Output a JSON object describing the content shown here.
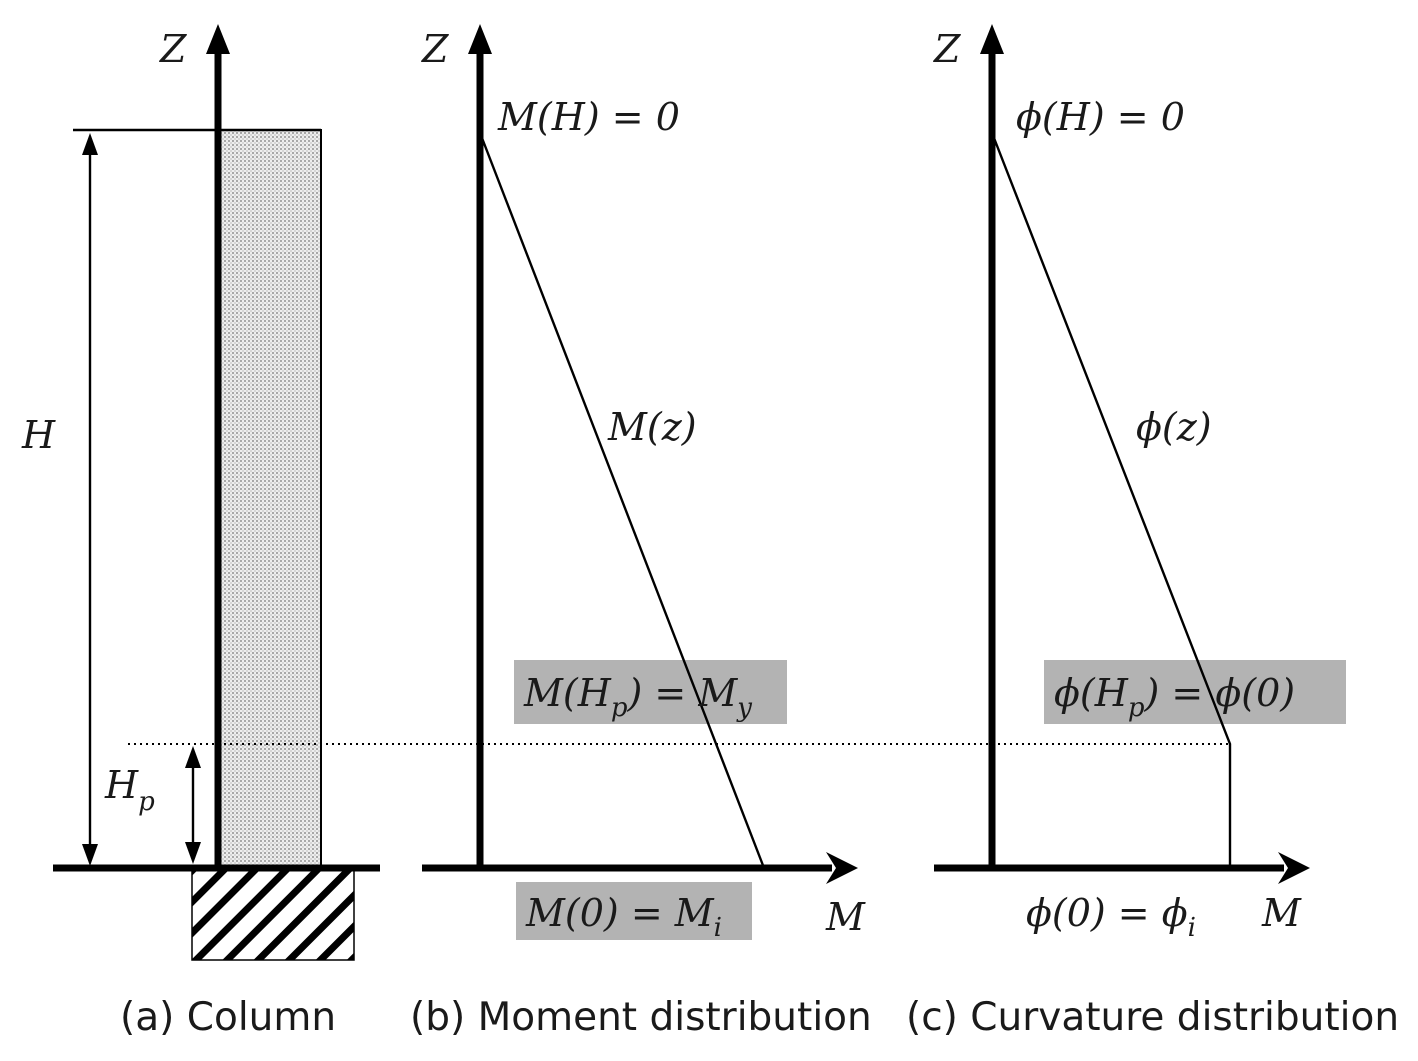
{
  "panel_a": {
    "axis_label": "Z",
    "height_label": "H",
    "plastic_height_label": "H",
    "plastic_height_sub": "p",
    "caption": "(a) Column"
  },
  "panel_b": {
    "axis_label": "Z",
    "x_axis_label": "M",
    "top_label": "M(H) = 0",
    "curve_label": "M(z)",
    "hp_label_main": "M(H",
    "hp_label_sub": "p",
    "hp_label_end": ") = M",
    "hp_label_sub2": "y",
    "base_label_main": "M(0) = M",
    "base_label_sub": "i",
    "caption": "(b) Moment distribution"
  },
  "panel_c": {
    "axis_label": "Z",
    "x_axis_label": "M",
    "top_label": "ϕ(H) = 0",
    "curve_label": "ϕ(z)",
    "hp_label_main": "ϕ(H",
    "hp_label_sub": "p",
    "hp_label_end": ") = ϕ(0)",
    "base_label_main": "ϕ(0) = ϕ",
    "base_label_sub": "i",
    "caption": "(c) Curvature distribution"
  },
  "colors": {
    "highlight": "#b3b3b3",
    "ink": "#000000"
  }
}
